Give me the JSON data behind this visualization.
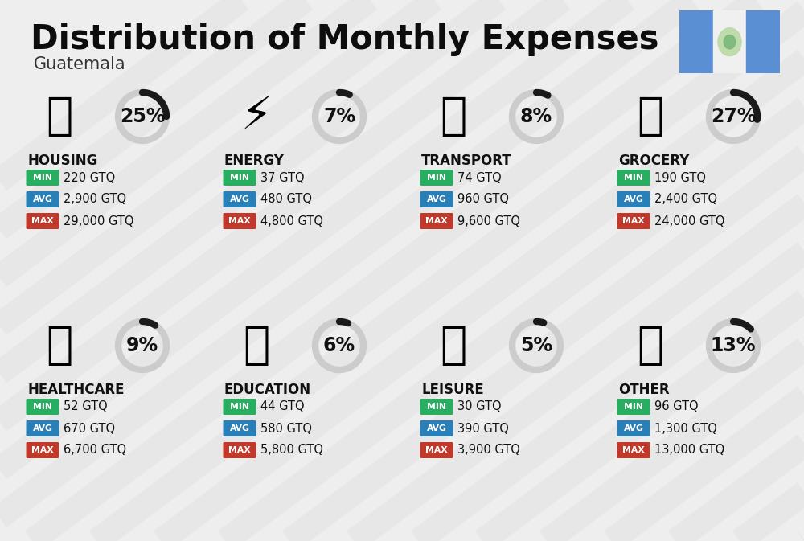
{
  "title": "Distribution of Monthly Expenses",
  "subtitle": "Guatemala",
  "bg_color": "#eeeeee",
  "categories": [
    {
      "name": "HOUSING",
      "pct": 25,
      "min_val": "220 GTQ",
      "avg_val": "2,900 GTQ",
      "max_val": "29,000 GTQ",
      "col": 0,
      "row": 0
    },
    {
      "name": "ENERGY",
      "pct": 7,
      "min_val": "37 GTQ",
      "avg_val": "480 GTQ",
      "max_val": "4,800 GTQ",
      "col": 1,
      "row": 0
    },
    {
      "name": "TRANSPORT",
      "pct": 8,
      "min_val": "74 GTQ",
      "avg_val": "960 GTQ",
      "max_val": "9,600 GTQ",
      "col": 2,
      "row": 0
    },
    {
      "name": "GROCERY",
      "pct": 27,
      "min_val": "190 GTQ",
      "avg_val": "2,400 GTQ",
      "max_val": "24,000 GTQ",
      "col": 3,
      "row": 0
    },
    {
      "name": "HEALTHCARE",
      "pct": 9,
      "min_val": "52 GTQ",
      "avg_val": "670 GTQ",
      "max_val": "6,700 GTQ",
      "col": 0,
      "row": 1
    },
    {
      "name": "EDUCATION",
      "pct": 6,
      "min_val": "44 GTQ",
      "avg_val": "580 GTQ",
      "max_val": "5,800 GTQ",
      "col": 1,
      "row": 1
    },
    {
      "name": "LEISURE",
      "pct": 5,
      "min_val": "30 GTQ",
      "avg_val": "390 GTQ",
      "max_val": "3,900 GTQ",
      "col": 2,
      "row": 1
    },
    {
      "name": "OTHER",
      "pct": 13,
      "min_val": "96 GTQ",
      "avg_val": "1,300 GTQ",
      "max_val": "13,000 GTQ",
      "col": 3,
      "row": 1
    }
  ],
  "min_color": "#27ae60",
  "avg_color": "#2980b9",
  "max_color": "#c0392b",
  "arc_dark": "#1a1a1a",
  "arc_light": "#cccccc",
  "title_fontsize": 30,
  "subtitle_fontsize": 15,
  "pct_fontsize": 17,
  "cat_fontsize": 12,
  "val_fontsize": 10.5
}
